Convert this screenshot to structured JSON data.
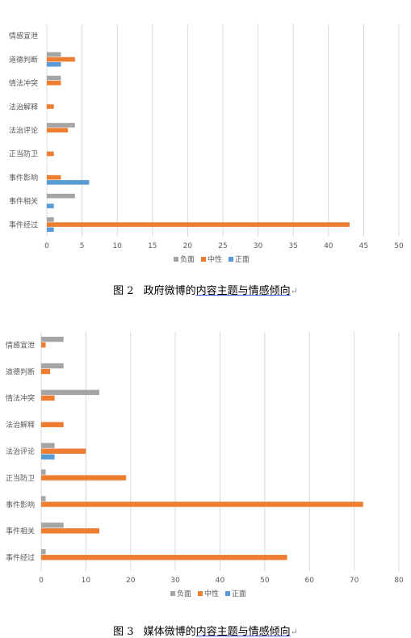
{
  "chart_data": [
    {
      "type": "bar",
      "orientation": "horizontal",
      "categories": [
        "情感宣泄",
        "道德判断",
        "情法冲突",
        "法治解释",
        "法治评论",
        "正当防卫",
        "事件影响",
        "事件相关",
        "事件经过"
      ],
      "series": [
        {
          "name": "负面",
          "color": "#a5a5a5",
          "values": [
            0,
            2,
            2,
            0,
            4,
            0,
            0,
            4,
            1
          ]
        },
        {
          "name": "中性",
          "color": "#ed7d31",
          "values": [
            0,
            4,
            2,
            1,
            3,
            1,
            2,
            0,
            43
          ]
        },
        {
          "name": "正面",
          "color": "#5b9bd5",
          "values": [
            0,
            2,
            0,
            0,
            0,
            0,
            6,
            1,
            1
          ]
        }
      ],
      "xlim": [
        0,
        50
      ],
      "xticks": [
        "0",
        "5",
        "10",
        "15",
        "20",
        "25",
        "30",
        "35",
        "40",
        "45",
        "50"
      ],
      "grid": true,
      "legend_position": "bottom"
    },
    {
      "type": "bar",
      "orientation": "horizontal",
      "categories": [
        "情感宣泄",
        "道德判断",
        "情法冲突",
        "法治解释",
        "法治评论",
        "正当防卫",
        "事件影响",
        "事件相关",
        "事件经过"
      ],
      "series": [
        {
          "name": "负面",
          "color": "#a5a5a5",
          "values": [
            5,
            5,
            13,
            0,
            3,
            1,
            1,
            5,
            1
          ]
        },
        {
          "name": "中性",
          "color": "#ed7d31",
          "values": [
            1,
            2,
            3,
            5,
            10,
            19,
            72,
            13,
            55
          ]
        },
        {
          "name": "正面",
          "color": "#5b9bd5",
          "values": [
            0,
            0,
            0,
            0,
            3,
            0,
            0,
            0,
            0
          ]
        }
      ],
      "xlim": [
        0,
        80
      ],
      "xticks": [
        "0",
        "10",
        "20",
        "30",
        "40",
        "50",
        "60",
        "70",
        "80"
      ],
      "grid": true,
      "legend_position": "bottom"
    }
  ],
  "captions": [
    {
      "number": "图 2",
      "text_a": "政府微博的",
      "text_b": "内容主题与情感倾向",
      "mark": "↵"
    },
    {
      "number": "图 3",
      "text_a": "媒体微博的",
      "text_b": "内容主题与情感倾向",
      "mark": "↵"
    }
  ]
}
